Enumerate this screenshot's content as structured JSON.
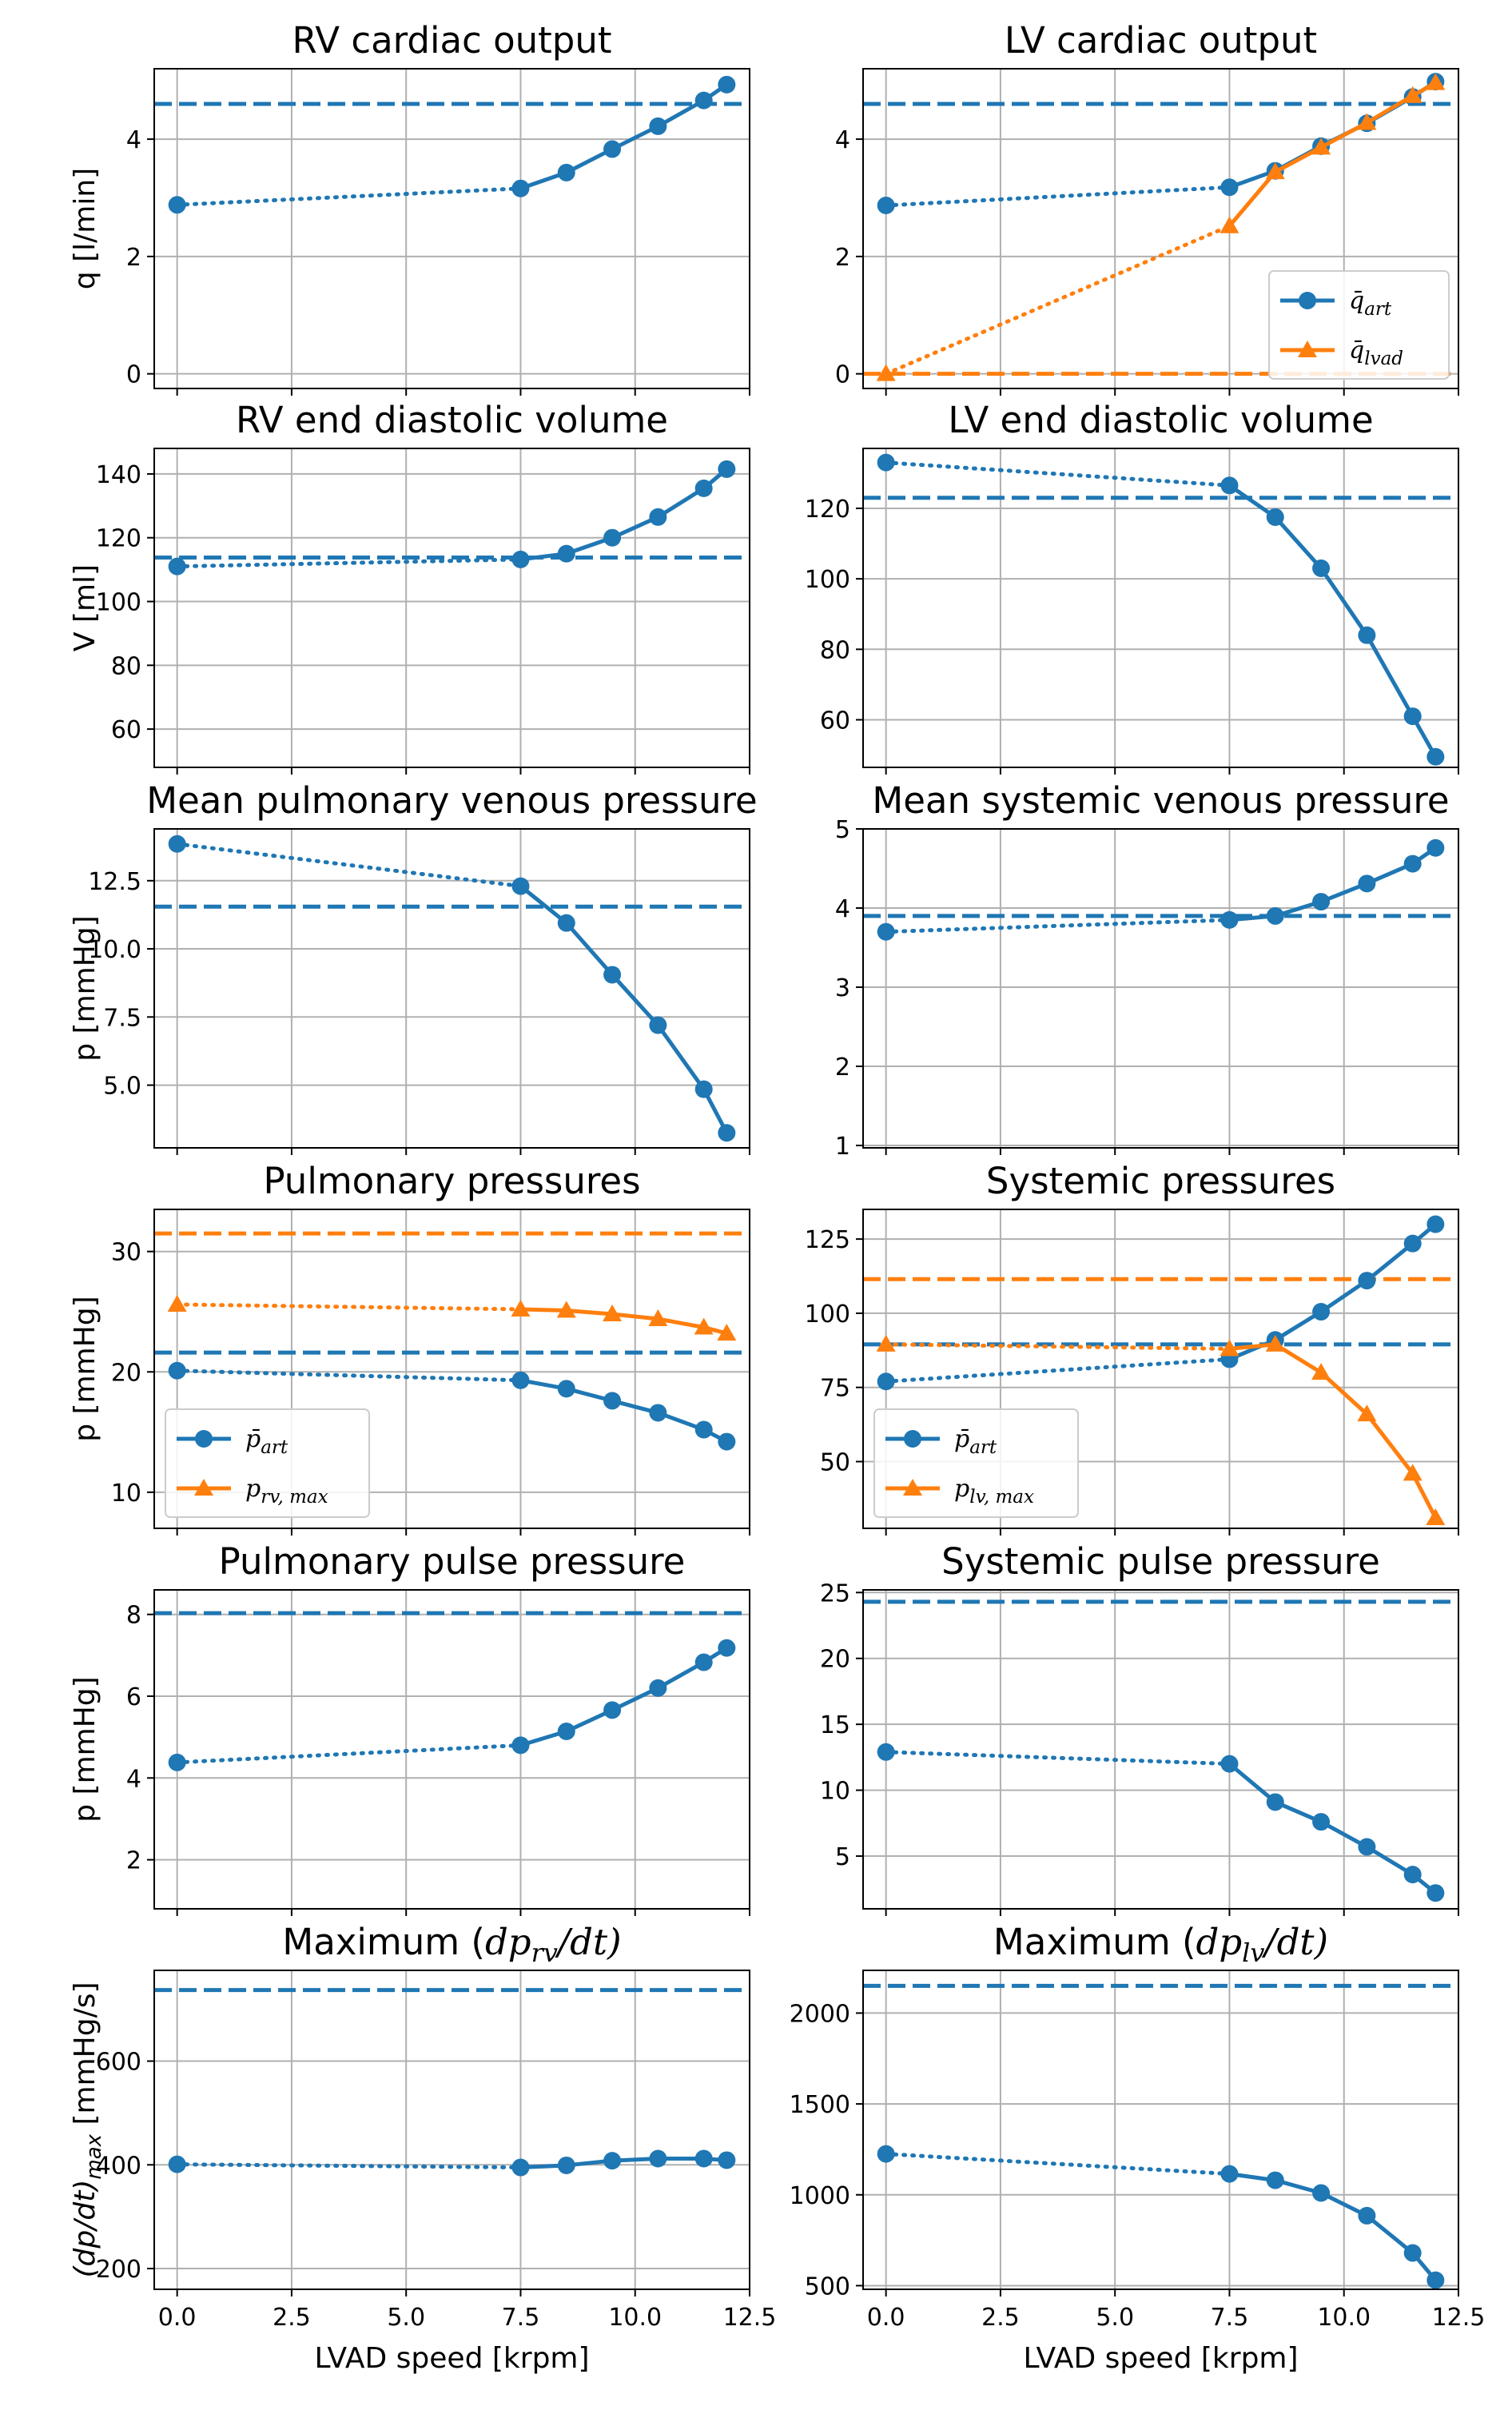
{
  "figure": {
    "xlabel": "LVAD speed [krpm]",
    "xlim": [
      -0.5,
      12.5
    ],
    "xticks": [
      0.0,
      2.5,
      5.0,
      7.5,
      10.0,
      12.5
    ],
    "xtick_labels": [
      "0.0",
      "2.5",
      "5.0",
      "7.5",
      "10.0",
      "12.5"
    ],
    "colors": {
      "blue": "#1f77b4",
      "orange": "#ff7f0e",
      "grid": "#b0b0b0"
    }
  },
  "chart_data": [
    {
      "id": "rv_co",
      "type": "line",
      "title": "RV cardiac output",
      "ylabel": "q [l/min]",
      "ylim": [
        -0.25,
        5.2
      ],
      "yticks": [
        0,
        2,
        4
      ],
      "ytick_labels": [
        "0",
        "2",
        "4"
      ],
      "grid": true,
      "legend": null,
      "series": [
        {
          "color": "#1f77b4",
          "marker": "circle",
          "baseline": 4.6,
          "x": [
            0,
            7.5,
            8.5,
            9.5,
            10.5,
            11.5,
            12
          ],
          "y": [
            2.88,
            3.16,
            3.43,
            3.83,
            4.22,
            4.66,
            4.93
          ]
        }
      ]
    },
    {
      "id": "lv_co",
      "type": "line",
      "title": "LV cardiac output",
      "ylabel": "",
      "ylim": [
        -0.25,
        5.2
      ],
      "yticks": [
        0,
        2,
        4
      ],
      "ytick_labels": [
        "0",
        "2",
        "4"
      ],
      "grid": true,
      "legend": "lower right",
      "series": [
        {
          "name": "q̄art",
          "label_main": "q̄",
          "label_sub": "art",
          "color": "#1f77b4",
          "marker": "circle",
          "baseline": 4.6,
          "x": [
            0,
            7.5,
            8.5,
            9.5,
            10.5,
            11.5,
            12
          ],
          "y": [
            2.87,
            3.18,
            3.46,
            3.88,
            4.27,
            4.72,
            4.98
          ]
        },
        {
          "name": "q̄lvad",
          "label_main": "q̄",
          "label_sub": "lvad",
          "color": "#ff7f0e",
          "marker": "triangle",
          "baseline": 0,
          "x": [
            0,
            7.5,
            8.5,
            9.5,
            10.5,
            11.5,
            12
          ],
          "y": [
            0.0,
            2.52,
            3.44,
            3.86,
            4.28,
            4.74,
            4.96
          ]
        }
      ]
    },
    {
      "id": "rv_edv",
      "type": "line",
      "title": "RV end diastolic volume",
      "ylabel": "V [ml]",
      "ylim": [
        48,
        148
      ],
      "yticks": [
        60,
        80,
        100,
        120,
        140
      ],
      "ytick_labels": [
        "60",
        "80",
        "100",
        "120",
        "140"
      ],
      "grid": true,
      "legend": null,
      "series": [
        {
          "color": "#1f77b4",
          "marker": "circle",
          "baseline": 113.8,
          "x": [
            0,
            7.5,
            8.5,
            9.5,
            10.5,
            11.5,
            12
          ],
          "y": [
            111,
            113.2,
            115,
            120,
            126.5,
            135.5,
            141.5
          ]
        }
      ]
    },
    {
      "id": "lv_edv",
      "type": "line",
      "title": "LV end diastolic volume",
      "ylabel": "",
      "ylim": [
        46.5,
        137
      ],
      "yticks": [
        60,
        80,
        100,
        120
      ],
      "ytick_labels": [
        "60",
        "80",
        "100",
        "120"
      ],
      "grid": true,
      "legend": null,
      "series": [
        {
          "color": "#1f77b4",
          "marker": "circle",
          "baseline": 123,
          "x": [
            0,
            7.5,
            8.5,
            9.5,
            10.5,
            11.5,
            12
          ],
          "y": [
            133,
            126.5,
            117.5,
            103,
            84,
            61,
            49.5
          ]
        }
      ]
    },
    {
      "id": "pv_pressure",
      "type": "line",
      "title": "Mean pulmonary venous pressure",
      "ylabel": "p [mmHg]",
      "ylim": [
        2.7,
        14.4
      ],
      "yticks": [
        5.0,
        7.5,
        10.0,
        12.5
      ],
      "ytick_labels": [
        "5.0",
        "7.5",
        "10.0",
        "12.5"
      ],
      "grid": true,
      "legend": null,
      "series": [
        {
          "color": "#1f77b4",
          "marker": "circle",
          "baseline": 11.55,
          "x": [
            0,
            7.5,
            8.5,
            9.5,
            10.5,
            11.5,
            12
          ],
          "y": [
            13.85,
            12.3,
            10.95,
            9.05,
            7.2,
            4.85,
            3.25
          ]
        }
      ]
    },
    {
      "id": "sv_pressure",
      "type": "line",
      "title": "Mean systemic venous pressure",
      "ylabel": "",
      "ylim": [
        0.97,
        5.0
      ],
      "yticks": [
        1,
        2,
        3,
        4,
        5
      ],
      "ytick_labels": [
        "1",
        "2",
        "3",
        "4",
        "5"
      ],
      "grid": true,
      "legend": null,
      "series": [
        {
          "color": "#1f77b4",
          "marker": "circle",
          "baseline": 3.9,
          "x": [
            0,
            7.5,
            8.5,
            9.5,
            10.5,
            11.5,
            12
          ],
          "y": [
            3.7,
            3.85,
            3.9,
            4.08,
            4.31,
            4.56,
            4.76
          ]
        }
      ]
    },
    {
      "id": "pulm_pressures",
      "type": "line",
      "title": "Pulmonary pressures",
      "ylabel": "p [mmHg]",
      "ylim": [
        7,
        33.5
      ],
      "yticks": [
        10,
        20,
        30
      ],
      "ytick_labels": [
        "10",
        "20",
        "30"
      ],
      "grid": true,
      "legend": "lower left",
      "series": [
        {
          "name": "p̄art",
          "label_main": "p̄",
          "label_sub": "art",
          "color": "#1f77b4",
          "marker": "circle",
          "baseline": 21.6,
          "x": [
            0,
            7.5,
            8.5,
            9.5,
            10.5,
            11.5,
            12
          ],
          "y": [
            20.1,
            19.3,
            18.6,
            17.6,
            16.6,
            15.2,
            14.2
          ]
        },
        {
          "name": "prv,max",
          "label_main": "p",
          "label_sub": "rv, max",
          "color": "#ff7f0e",
          "marker": "triangle",
          "baseline": 31.5,
          "x": [
            0,
            7.5,
            8.5,
            9.5,
            10.5,
            11.5,
            12
          ],
          "y": [
            25.6,
            25.2,
            25.1,
            24.8,
            24.4,
            23.7,
            23.2
          ]
        }
      ]
    },
    {
      "id": "sys_pressures",
      "type": "line",
      "title": "Systemic pressures",
      "ylabel": "",
      "ylim": [
        27.5,
        135
      ],
      "yticks": [
        50,
        75,
        100,
        125
      ],
      "ytick_labels": [
        "50",
        "75",
        "100",
        "125"
      ],
      "grid": true,
      "legend": "lower left",
      "series": [
        {
          "name": "p̄art",
          "label_main": "p̄",
          "label_sub": "art",
          "color": "#1f77b4",
          "marker": "circle",
          "baseline": 89.5,
          "x": [
            0,
            7.5,
            8.5,
            9.5,
            10.5,
            11.5,
            12
          ],
          "y": [
            77,
            84.5,
            91,
            100.5,
            111,
            123.5,
            130
          ]
        },
        {
          "name": "plv,max",
          "label_main": "p",
          "label_sub": "lv, max",
          "color": "#ff7f0e",
          "marker": "triangle",
          "baseline": 111.5,
          "x": [
            0,
            7.5,
            8.5,
            9.5,
            10.5,
            11.5,
            12
          ],
          "y": [
            89.5,
            88,
            89.5,
            80,
            66,
            46,
            31
          ]
        }
      ]
    },
    {
      "id": "pulm_pulse",
      "type": "line",
      "title": "Pulmonary pulse pressure",
      "ylabel": "p [mmHg]",
      "ylim": [
        0.8,
        8.6
      ],
      "yticks": [
        2,
        4,
        6,
        8
      ],
      "ytick_labels": [
        "2",
        "4",
        "6",
        "8"
      ],
      "grid": true,
      "legend": null,
      "series": [
        {
          "color": "#1f77b4",
          "marker": "circle",
          "baseline": 8.03,
          "x": [
            0,
            7.5,
            8.5,
            9.5,
            10.5,
            11.5,
            12
          ],
          "y": [
            4.38,
            4.8,
            5.14,
            5.66,
            6.2,
            6.83,
            7.18
          ]
        }
      ]
    },
    {
      "id": "sys_pulse",
      "type": "line",
      "title": "Systemic pulse pressure",
      "ylabel": "",
      "ylim": [
        1.0,
        25.2
      ],
      "yticks": [
        5,
        10,
        15,
        20,
        25
      ],
      "ytick_labels": [
        "5",
        "10",
        "15",
        "20",
        "25"
      ],
      "grid": true,
      "legend": null,
      "series": [
        {
          "color": "#1f77b4",
          "marker": "circle",
          "baseline": 24.3,
          "x": [
            0,
            7.5,
            8.5,
            9.5,
            10.5,
            11.5,
            12
          ],
          "y": [
            12.9,
            12,
            9.1,
            7.6,
            5.7,
            3.6,
            2.2
          ]
        }
      ]
    },
    {
      "id": "rv_dpdt",
      "type": "line",
      "title": "Maximum (dprv/dt)",
      "title_pre": "Maximum (",
      "title_main": "dp",
      "title_sub": "rv",
      "title_post": "/dt)",
      "ylabel": "(dp/dt)max [mmHg/s]",
      "ylim": [
        160,
        775
      ],
      "yticks": [
        200,
        400,
        600
      ],
      "ytick_labels": [
        "200",
        "400",
        "600"
      ],
      "grid": true,
      "legend": null,
      "series": [
        {
          "color": "#1f77b4",
          "marker": "circle",
          "baseline": 737,
          "x": [
            0,
            7.5,
            8.5,
            9.5,
            10.5,
            11.5,
            12
          ],
          "y": [
            401,
            395,
            399,
            408,
            412,
            412,
            409
          ]
        }
      ]
    },
    {
      "id": "lv_dpdt",
      "type": "line",
      "title": "Maximum (dplv/dt)",
      "title_pre": "Maximum (",
      "title_main": "dp",
      "title_sub": "lv",
      "title_post": "/dt)",
      "ylabel": "",
      "ylim": [
        480,
        2235
      ],
      "yticks": [
        500,
        1000,
        1500,
        2000
      ],
      "ytick_labels": [
        "500",
        "1000",
        "1500",
        "2000"
      ],
      "grid": true,
      "legend": null,
      "series": [
        {
          "color": "#1f77b4",
          "marker": "circle",
          "baseline": 2150,
          "x": [
            0,
            7.5,
            8.5,
            9.5,
            10.5,
            11.5,
            12
          ],
          "y": [
            1225,
            1115,
            1080,
            1010,
            885,
            680,
            530
          ]
        }
      ]
    }
  ]
}
